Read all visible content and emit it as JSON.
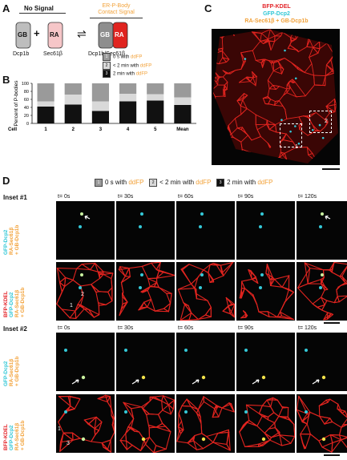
{
  "panels": {
    "a": "A",
    "b": "B",
    "c": "C",
    "d": "D"
  },
  "panelA": {
    "no_signal": "No Signal",
    "contact_signal_line1": "ER-P-Body",
    "contact_signal_line2": "Contact Signal",
    "gb": "GB",
    "ra": "RA",
    "plus": "+",
    "equilibrium": "⇌",
    "label_dcp": "Dcp1b",
    "label_sec": "Sec61β",
    "label_complex": "Dcp1b/Sec61β"
  },
  "legend": {
    "items": [
      {
        "num": "1",
        "text": "0 s with ",
        "hl": "ddFP",
        "color": "#9a9a9a"
      },
      {
        "num": "2",
        "text": "< 2 min with ",
        "hl": "ddFP",
        "color": "#d9d9d9"
      },
      {
        "num": "3",
        "text": "2 min with ",
        "hl": "ddFP",
        "color": "#111111"
      }
    ]
  },
  "chart_data": {
    "type": "bar",
    "stacked": true,
    "categories": [
      "1",
      "2",
      "3",
      "4",
      "5",
      "Mean"
    ],
    "xlabel": "Cell",
    "ylabel": "Percent of P-bodies",
    "ylim": [
      0,
      100
    ],
    "yticks": [
      0,
      20,
      40,
      60,
      80,
      100
    ],
    "series": [
      {
        "name": "2 min with ddFP",
        "color": "#111111",
        "values": [
          42,
          47,
          31,
          55,
          57,
          46
        ]
      },
      {
        "name": "< 2 min with ddFP",
        "color": "#d9d9d9",
        "values": [
          13,
          25,
          24,
          19,
          16,
          19
        ]
      },
      {
        "name": "0 s with ddFP",
        "color": "#9a9a9a",
        "values": [
          45,
          28,
          45,
          26,
          27,
          35
        ]
      }
    ]
  },
  "panelC": {
    "line1": "BFP-KDEL",
    "line2": "GFP-Dcp2",
    "line3": "RA-Sec61β + GB-Dcp1b",
    "inset1": "1",
    "inset2": "2"
  },
  "panelD": {
    "legend_text": [
      {
        "num": "1",
        "text": "0 s with ",
        "hl": "ddFP"
      },
      {
        "num": "2",
        "text": "< 2 min with ",
        "hl": "ddFP"
      },
      {
        "num": "3",
        "text": "2 min with ",
        "hl": "ddFP"
      }
    ],
    "inset1_title": "Inset #1",
    "inset2_title": "Inset #2",
    "times": [
      "t= 0s",
      "t= 30s",
      "t= 60s",
      "t= 90s",
      "t= 120s"
    ],
    "row_label_gfp": "GFP-Dcp2",
    "row_label_ra": "RA-Sec61β",
    "row_label_gb": "+ GB-Dcp1b",
    "row_label_bfp": "BFP-KDEL",
    "num1": "1",
    "num2": "2",
    "num3": "3"
  },
  "colors": {
    "er": "#e0241f",
    "cyan": "#34c9d8",
    "yellow": "#f2e24a",
    "orange": "#f2a23a"
  }
}
